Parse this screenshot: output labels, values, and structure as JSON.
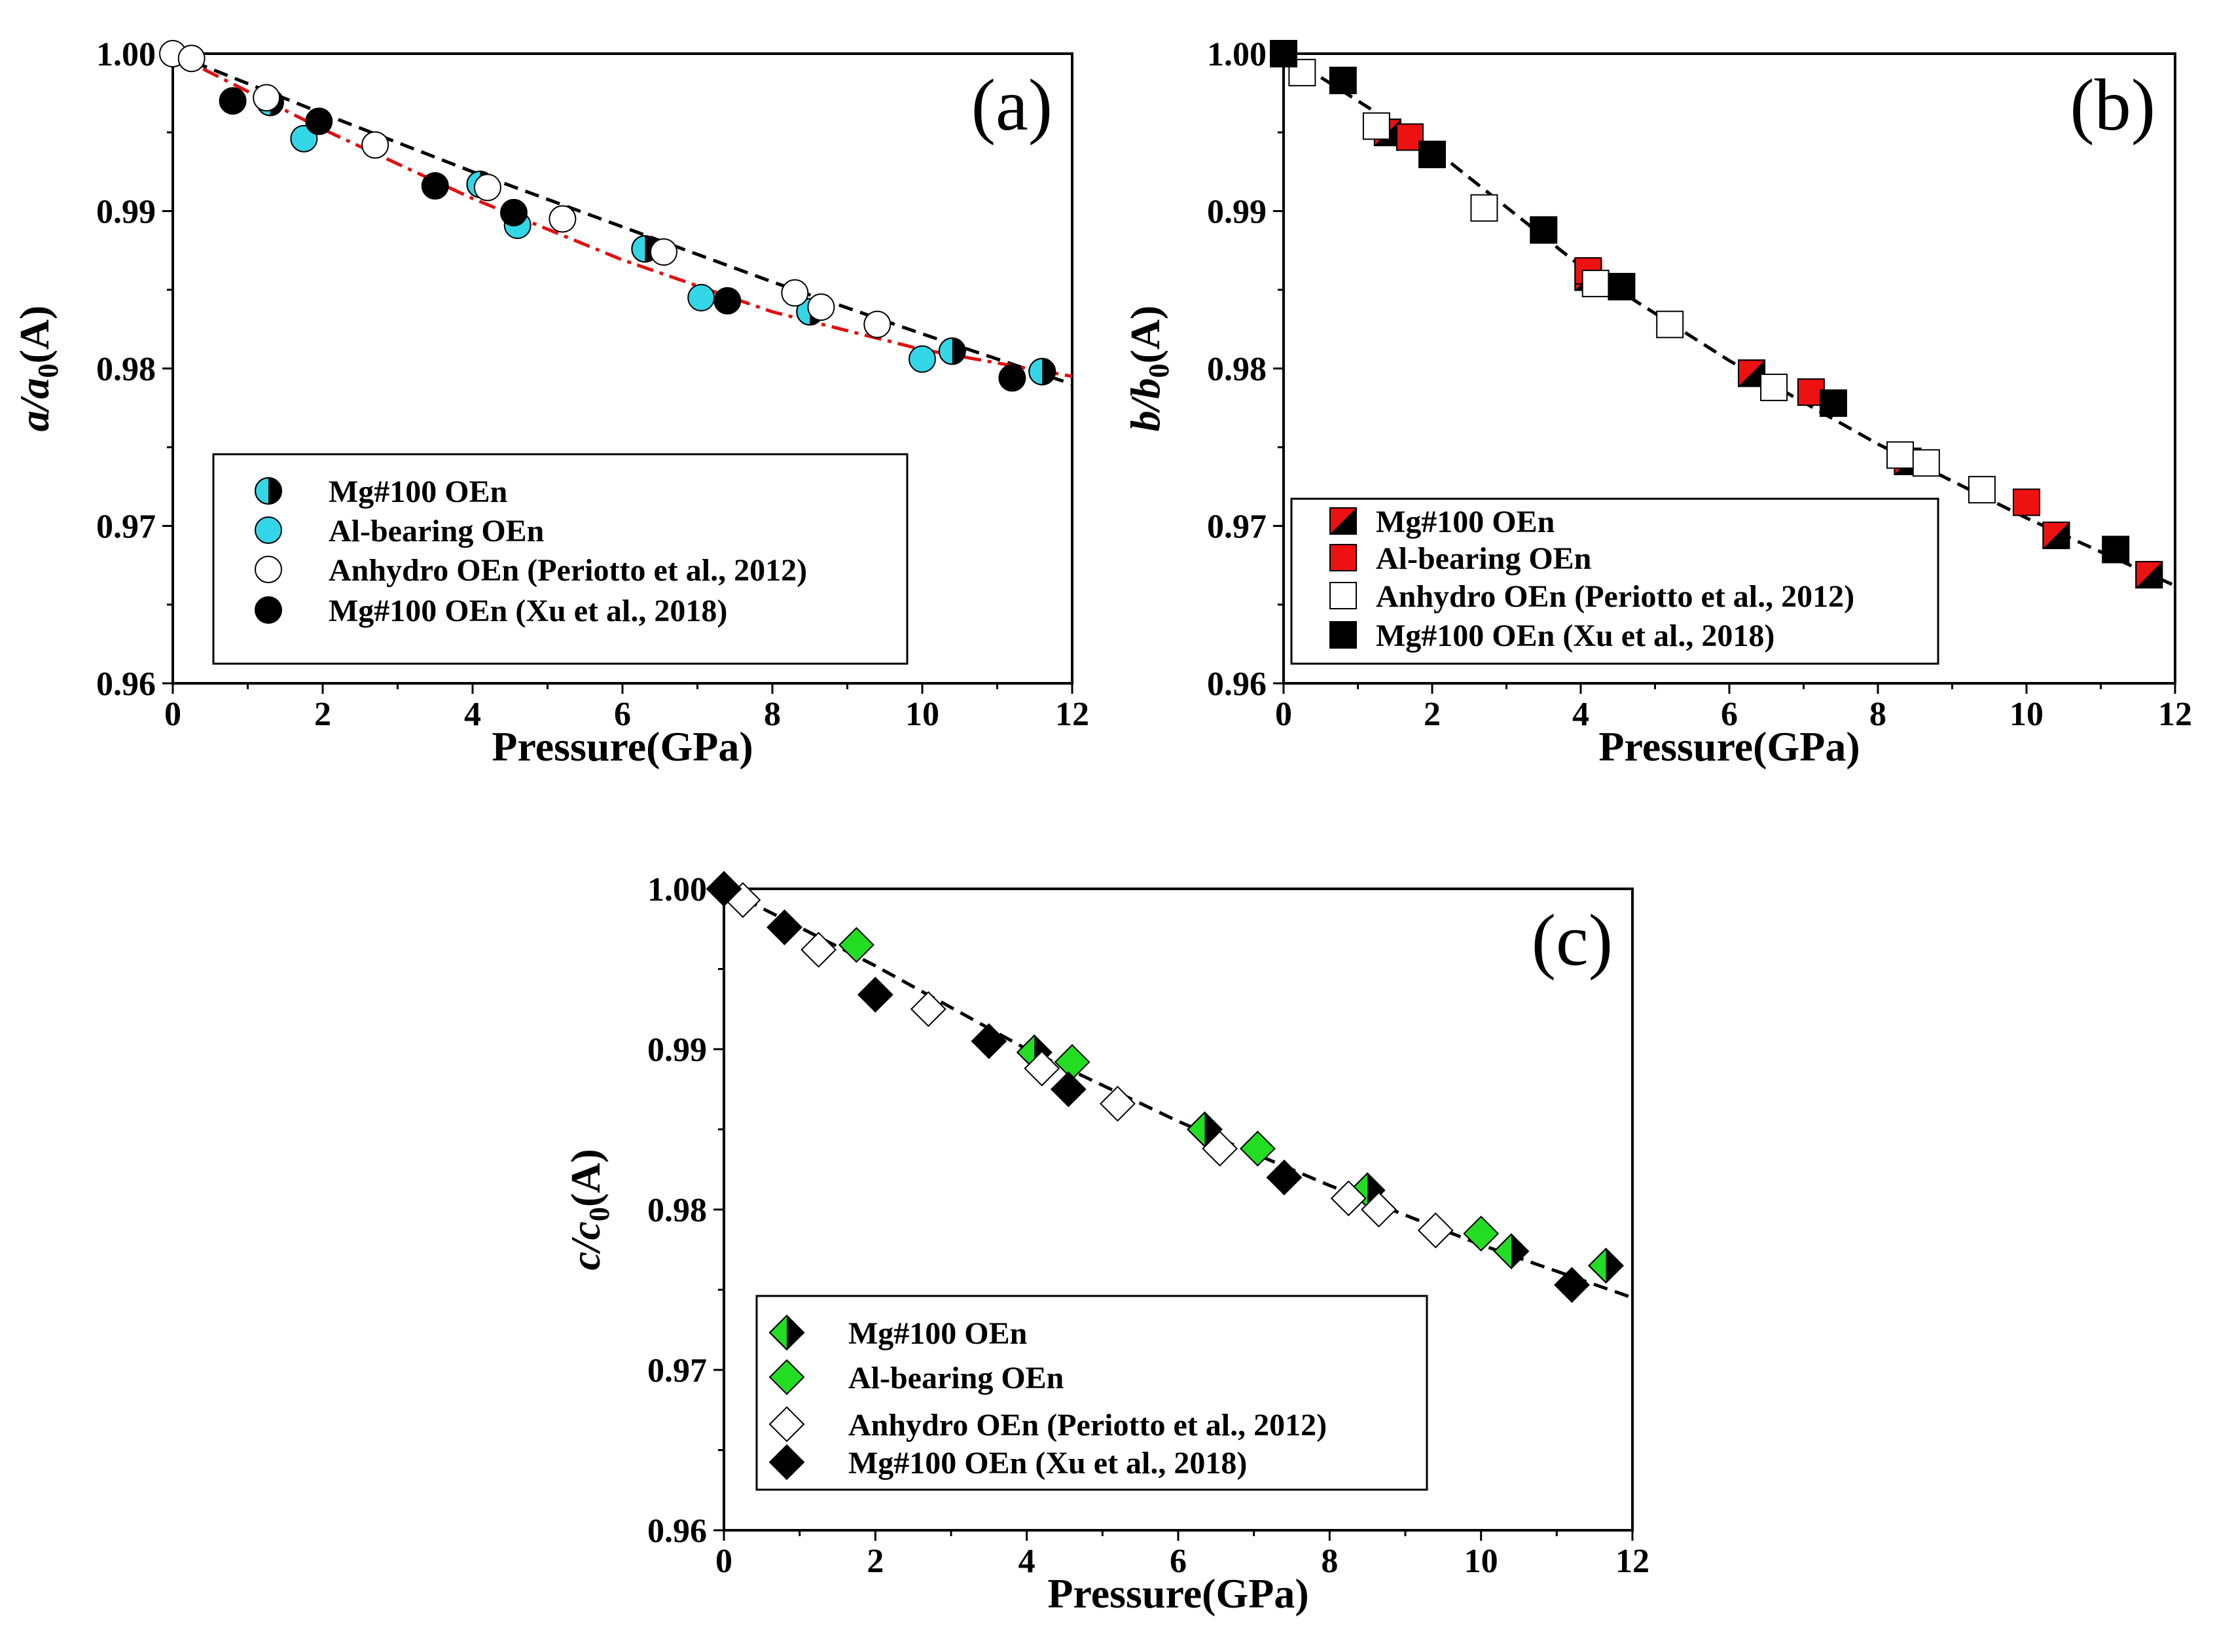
{
  "chart_data": [
    {
      "type": "scatter",
      "panel_label": "(a)",
      "marker": "circle",
      "xlabel": "Pressure(GPa)",
      "ylabel": {
        "main": "a/a",
        "sub": "0",
        "suffix": "(A)"
      },
      "xlim": [
        0,
        12
      ],
      "ylim": [
        0.96,
        1.0
      ],
      "xticks": [
        "0",
        "2",
        "4",
        "6",
        "8",
        "10",
        "12"
      ],
      "yticks": [
        "0.96",
        "0.97",
        "0.98",
        "0.99",
        "1.00"
      ],
      "series": [
        {
          "name": "Mg#100 OEn",
          "style": "half",
          "fill": "#33d6e6",
          "x": [
            1.3,
            4.1,
            6.3,
            8.5,
            10.4,
            11.6
          ],
          "y": [
            0.9969,
            0.9917,
            0.9876,
            0.9836,
            0.9811,
            0.9798
          ]
        },
        {
          "name": "Al-bearing OEn",
          "style": "solid",
          "fill": "#33d6e6",
          "x": [
            1.75,
            4.6,
            7.05,
            10.0
          ],
          "y": [
            0.9946,
            0.9891,
            0.9845,
            0.9806
          ]
        },
        {
          "name": "Anhydro OEn (Periotto et al., 2012)",
          "style": "open",
          "fill": "#ffffff",
          "x": [
            0,
            0.25,
            1.25,
            2.7,
            4.2,
            5.2,
            6.55,
            8.3,
            8.65,
            9.4
          ],
          "y": [
            1.0,
            0.9997,
            0.9972,
            0.9942,
            0.9915,
            0.9895,
            0.9874,
            0.9848,
            0.9839,
            0.9828
          ]
        },
        {
          "name": "Mg#100 OEn (Xu et al., 2018)",
          "style": "solid",
          "fill": "#000000",
          "x": [
            0.8,
            1.95,
            3.5,
            4.55,
            7.4,
            11.2
          ],
          "y": [
            0.997,
            0.9957,
            0.9916,
            0.9899,
            0.9843,
            0.9794
          ]
        }
      ],
      "fits": [
        {
          "x": [
            0,
            2,
            4,
            6,
            8,
            10,
            12
          ],
          "y": [
            1.0,
            0.9962,
            0.9925,
            0.989,
            0.9855,
            0.9822,
            0.979
          ],
          "color": "#000000",
          "dash": "dash"
        },
        {
          "x": [
            0,
            2,
            4,
            6,
            8,
            10,
            12
          ],
          "y": [
            1.0,
            0.9952,
            0.9908,
            0.9869,
            0.9836,
            0.9812,
            0.9795
          ],
          "color": "#e01010",
          "dash": "dashdot"
        }
      ],
      "legend_position": "bottom-left"
    },
    {
      "type": "scatter",
      "panel_label": "(b)",
      "marker": "square",
      "xlabel": "Pressure(GPa)",
      "ylabel": {
        "main": "b/b",
        "sub": "0",
        "suffix": "(A)"
      },
      "xlim": [
        0,
        12
      ],
      "ylim": [
        0.96,
        1.0
      ],
      "xticks": [
        "0",
        "2",
        "4",
        "6",
        "8",
        "10",
        "12"
      ],
      "yticks": [
        "0.96",
        "0.97",
        "0.98",
        "0.99",
        "1.00"
      ],
      "series": [
        {
          "name": "Mg#100 OEn",
          "style": "half",
          "fill": "#ee1111",
          "x": [
            1.4,
            4.1,
            6.3,
            8.4,
            10.4,
            11.65
          ],
          "y": [
            0.995,
            0.9858,
            0.9797,
            0.9741,
            0.9694,
            0.9669
          ]
        },
        {
          "name": "Al-bearing OEn",
          "style": "solid",
          "fill": "#ee1111",
          "x": [
            1.7,
            4.1,
            7.1,
            10.0
          ],
          "y": [
            0.9947,
            0.9862,
            0.9785,
            0.9715
          ]
        },
        {
          "name": "Anhydro OEn (Periotto et al., 2012)",
          "style": "open",
          "fill": "#ffffff",
          "x": [
            0.25,
            1.25,
            2.7,
            4.2,
            5.2,
            6.6,
            8.3,
            8.65,
            9.4
          ],
          "y": [
            0.9988,
            0.9954,
            0.9902,
            0.9854,
            0.9828,
            0.9788,
            0.9745,
            0.974,
            0.9723
          ]
        },
        {
          "name": "Mg#100 OEn (Xu et al., 2018)",
          "style": "solid",
          "fill": "#000000",
          "x": [
            0,
            0.8,
            2.0,
            3.5,
            4.55,
            7.4,
            11.2
          ],
          "y": [
            1.0,
            0.9983,
            0.9936,
            0.9888,
            0.9852,
            0.9778,
            0.9685
          ]
        }
      ],
      "fits": [
        {
          "x": [
            0,
            2,
            4,
            6,
            8,
            10,
            12
          ],
          "y": [
            1.0,
            0.994,
            0.9865,
            0.9805,
            0.9752,
            0.9705,
            0.9662
          ],
          "color": "#000000",
          "dash": "dash"
        }
      ],
      "legend_position": "bottom-left"
    },
    {
      "type": "scatter",
      "panel_label": "(c)",
      "marker": "diamond",
      "xlabel": "Pressure(GPa)",
      "ylabel": {
        "main": "c/c",
        "sub": "0",
        "suffix": "(A)"
      },
      "xlim": [
        0,
        12
      ],
      "ylim": [
        0.96,
        1.0
      ],
      "xticks": [
        "0",
        "2",
        "4",
        "6",
        "8",
        "10",
        "12"
      ],
      "yticks": [
        "0.96",
        "0.97",
        "0.98",
        "0.99",
        "1.00"
      ],
      "series": [
        {
          "name": "Mg#100 OEn",
          "style": "half",
          "fill": "#22dd22",
          "x": [
            4.1,
            6.35,
            8.5,
            10.4,
            11.65
          ],
          "y": [
            0.9898,
            0.985,
            0.9812,
            0.9774,
            0.9765
          ]
        },
        {
          "name": "Al-bearing OEn",
          "style": "solid",
          "fill": "#22dd22",
          "x": [
            1.75,
            4.6,
            7.05,
            10.0
          ],
          "y": [
            0.9965,
            0.9892,
            0.9838,
            0.9785
          ]
        },
        {
          "name": "Anhydro OEn (Periotto et al., 2012)",
          "style": "open",
          "fill": "#ffffff",
          "x": [
            0.25,
            1.25,
            2.7,
            4.2,
            5.2,
            6.55,
            8.25,
            8.65,
            9.4
          ],
          "y": [
            0.9993,
            0.9962,
            0.9925,
            0.9888,
            0.9866,
            0.9838,
            0.9807,
            0.98,
            0.9787
          ]
        },
        {
          "name": "Mg#100 OEn (Xu et al., 2018)",
          "style": "solid",
          "fill": "#000000",
          "x": [
            0,
            0.8,
            2.0,
            3.5,
            4.55,
            7.4,
            11.2
          ],
          "y": [
            1.0,
            0.9976,
            0.9934,
            0.9905,
            0.9875,
            0.982,
            0.9753
          ]
        }
      ],
      "fits": [
        {
          "x": [
            0,
            2,
            4,
            6,
            8,
            10,
            12
          ],
          "y": [
            1.0,
            0.9952,
            0.99,
            0.9855,
            0.9815,
            0.9778,
            0.9745
          ],
          "color": "#000000",
          "dash": "dash"
        }
      ],
      "legend_position": "bottom-left"
    }
  ]
}
